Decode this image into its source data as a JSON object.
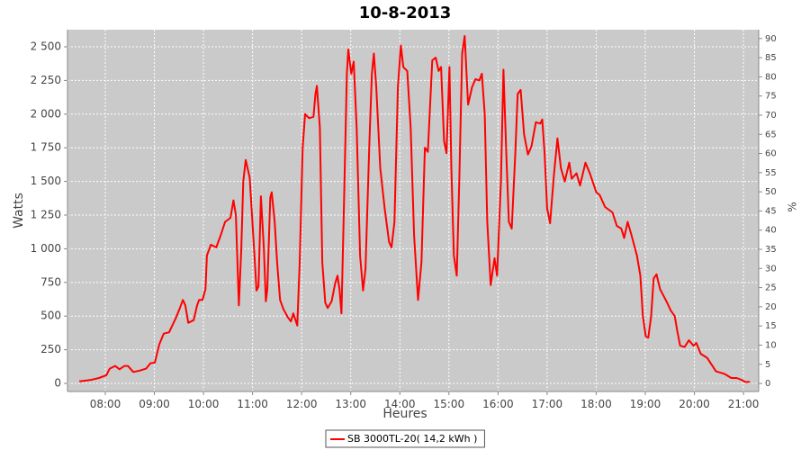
{
  "chart_data": {
    "type": "line",
    "title": "10-8-2013",
    "x_label": "Heures",
    "y_label": "Watts",
    "y2_label": "%",
    "x": [
      7.47,
      7.69,
      7.87,
      8.02,
      8.09,
      8.2,
      8.29,
      8.39,
      8.46,
      8.57,
      8.7,
      8.83,
      8.92,
      9.01,
      9.1,
      9.19,
      9.3,
      9.43,
      9.52,
      9.58,
      9.63,
      9.69,
      9.8,
      9.87,
      9.91,
      9.98,
      10.04,
      10.07,
      10.15,
      10.26,
      10.35,
      10.44,
      10.55,
      10.61,
      10.66,
      10.72,
      10.77,
      10.81,
      10.86,
      10.94,
      11.03,
      11.08,
      11.12,
      11.17,
      11.23,
      11.27,
      11.3,
      11.36,
      11.39,
      11.45,
      11.5,
      11.56,
      11.63,
      11.72,
      11.78,
      11.83,
      11.91,
      11.96,
      12.02,
      12.07,
      12.15,
      12.24,
      12.28,
      12.31,
      12.37,
      12.42,
      12.48,
      12.53,
      12.61,
      12.68,
      12.73,
      12.77,
      12.81,
      12.86,
      12.92,
      12.95,
      13.01,
      13.06,
      13.12,
      13.19,
      13.25,
      13.3,
      13.38,
      13.43,
      13.47,
      13.52,
      13.6,
      13.69,
      13.78,
      13.83,
      13.89,
      13.96,
      14.02,
      14.07,
      14.15,
      14.22,
      14.29,
      14.37,
      14.44,
      14.51,
      14.57,
      14.66,
      14.73,
      14.79,
      14.84,
      14.9,
      14.95,
      15.01,
      15.05,
      15.1,
      15.16,
      15.21,
      15.27,
      15.32,
      15.39,
      15.47,
      15.54,
      15.62,
      15.67,
      15.73,
      15.78,
      15.85,
      15.93,
      15.98,
      16.06,
      16.11,
      16.17,
      16.22,
      16.28,
      16.35,
      16.4,
      16.46,
      16.53,
      16.61,
      16.68,
      16.77,
      16.86,
      16.9,
      16.95,
      17.0,
      17.06,
      17.14,
      17.21,
      17.28,
      17.36,
      17.45,
      17.5,
      17.6,
      17.67,
      17.78,
      17.87,
      18.0,
      18.07,
      18.18,
      18.33,
      18.42,
      18.51,
      18.57,
      18.64,
      18.72,
      18.83,
      18.9,
      18.95,
      19.01,
      19.06,
      19.12,
      19.17,
      19.23,
      19.3,
      19.43,
      19.52,
      19.6,
      19.65,
      19.71,
      19.8,
      19.89,
      19.98,
      20.04,
      20.13,
      20.26,
      20.44,
      20.62,
      20.75,
      20.86,
      20.97,
      21.04,
      21.13
    ],
    "series": [
      {
        "name": "SB 3000TL-20( 14,2 kWh )",
        "color": "#ff0000",
        "values": [
          15,
          25,
          40,
          60,
          110,
          130,
          105,
          130,
          130,
          85,
          95,
          110,
          150,
          155,
          290,
          370,
          380,
          480,
          560,
          620,
          580,
          450,
          470,
          580,
          620,
          620,
          700,
          950,
          1030,
          1010,
          1100,
          1200,
          1230,
          1360,
          1250,
          580,
          1000,
          1500,
          1660,
          1530,
          1000,
          690,
          720,
          1390,
          1000,
          610,
          700,
          1380,
          1420,
          1200,
          900,
          620,
          550,
          490,
          460,
          520,
          430,
          900,
          1750,
          2000,
          1970,
          1980,
          2150,
          2210,
          1900,
          900,
          600,
          560,
          610,
          740,
          800,
          700,
          520,
          1300,
          2300,
          2480,
          2300,
          2390,
          1900,
          950,
          690,
          850,
          1800,
          2300,
          2450,
          2200,
          1600,
          1300,
          1050,
          1010,
          1200,
          2200,
          2510,
          2350,
          2320,
          1900,
          1100,
          620,
          900,
          1750,
          1720,
          2400,
          2420,
          2320,
          2350,
          1800,
          1710,
          2350,
          1600,
          950,
          800,
          1500,
          2450,
          2580,
          2070,
          2200,
          2260,
          2250,
          2300,
          2000,
          1200,
          730,
          930,
          800,
          1500,
          2330,
          1700,
          1200,
          1150,
          1700,
          2150,
          2180,
          1850,
          1700,
          1760,
          1940,
          1930,
          1960,
          1700,
          1300,
          1190,
          1550,
          1820,
          1600,
          1500,
          1640,
          1520,
          1560,
          1470,
          1640,
          1560,
          1420,
          1400,
          1310,
          1270,
          1170,
          1150,
          1080,
          1200,
          1100,
          950,
          800,
          500,
          350,
          340,
          500,
          780,
          810,
          700,
          610,
          540,
          500,
          390,
          280,
          270,
          320,
          280,
          300,
          220,
          190,
          90,
          70,
          40,
          40,
          25,
          10,
          12
        ]
      }
    ],
    "xlim": [
      7.23,
      21.31
    ],
    "xticks": [
      {
        "value": 8,
        "label": "08:00"
      },
      {
        "value": 9,
        "label": "09:00"
      },
      {
        "value": 10,
        "label": "10:00"
      },
      {
        "value": 11,
        "label": "11:00"
      },
      {
        "value": 12,
        "label": "12:00"
      },
      {
        "value": 13,
        "label": "13:00"
      },
      {
        "value": 14,
        "label": "14:00"
      },
      {
        "value": 15,
        "label": "15:00"
      },
      {
        "value": 16,
        "label": "16:00"
      },
      {
        "value": 17,
        "label": "17:00"
      },
      {
        "value": 18,
        "label": "18:00"
      },
      {
        "value": 19,
        "label": "19:00"
      },
      {
        "value": 20,
        "label": "20:00"
      },
      {
        "value": 21,
        "label": "21:00"
      }
    ],
    "ylim": [
      -60,
      2627
    ],
    "yticks": [
      0,
      250,
      500,
      750,
      {
        "value": 1000,
        "label": "1 000"
      },
      {
        "value": 1250,
        "label": "1 250"
      },
      {
        "value": 1500,
        "label": "1 500"
      },
      {
        "value": 1750,
        "label": "1 750"
      },
      {
        "value": 2000,
        "label": "2 000"
      },
      {
        "value": 2250,
        "label": "2 250"
      },
      {
        "value": 2500,
        "label": "2 500"
      }
    ],
    "y2lim": [
      -2.1,
      92.3
    ],
    "y2ticks": [
      0,
      5,
      10,
      15,
      20,
      25,
      30,
      35,
      40,
      45,
      50,
      55,
      60,
      65,
      70,
      75,
      80,
      85,
      90
    ],
    "grid": true,
    "legend": "bottom"
  }
}
